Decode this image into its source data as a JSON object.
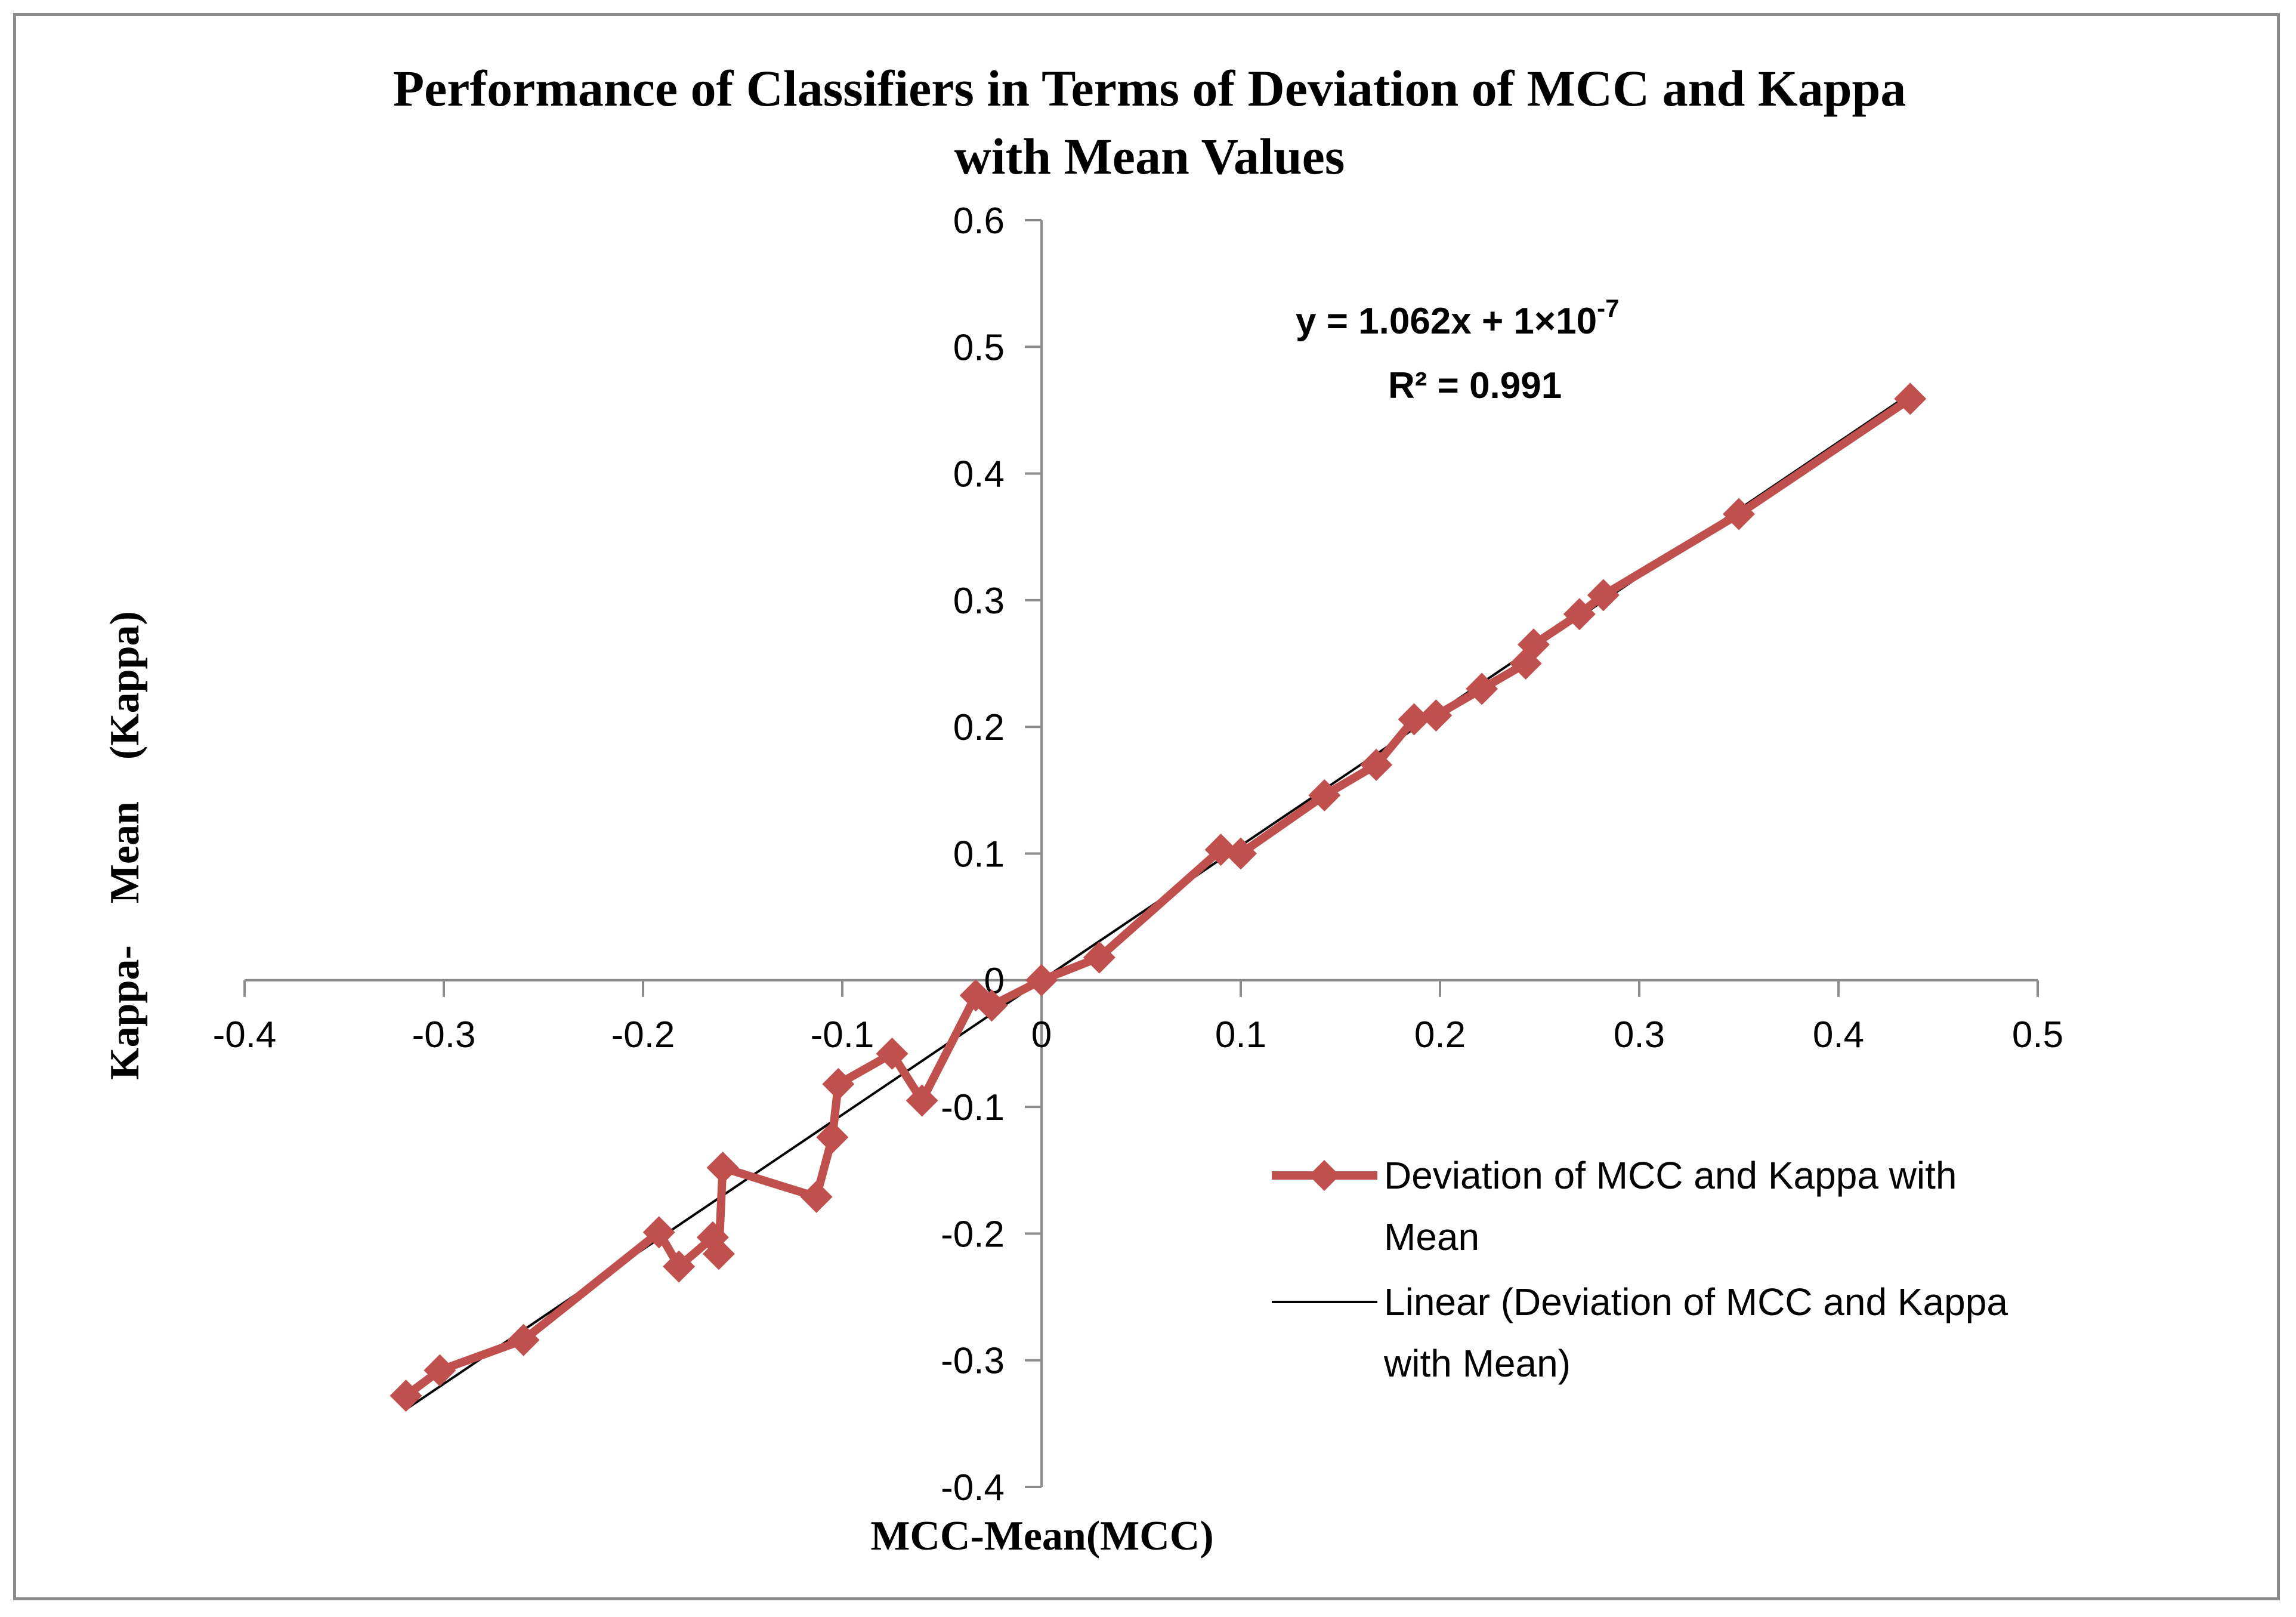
{
  "chart_data": {
    "type": "line",
    "title_lines": [
      "Performance of Classifiers in Terms of Deviation of MCC and Kappa",
      "with Mean Values"
    ],
    "xlabel": "MCC-Mean(MCC)",
    "ylabel": "Kappa-    Mean    (Kappa)",
    "xlim": [
      -0.4,
      0.5
    ],
    "ylim": [
      -0.4,
      0.6
    ],
    "x_ticks": [
      -0.4,
      -0.3,
      -0.2,
      -0.1,
      0,
      0.1,
      0.2,
      0.3,
      0.4,
      0.5
    ],
    "y_ticks": [
      -0.4,
      -0.3,
      -0.2,
      -0.1,
      0,
      0.1,
      0.2,
      0.3,
      0.4,
      0.5,
      0.6
    ],
    "x_tick_labels": [
      "-0.4",
      "-0.3",
      "-0.2",
      "-0.1",
      "0",
      "0.1",
      "0.2",
      "0.3",
      "0.4",
      "0.5"
    ],
    "y_tick_labels": [
      "-0.4",
      "-0.3",
      "-0.2",
      "-0.1",
      "0",
      "0.1",
      "0.2",
      "0.3",
      "0.4",
      "0.5",
      "0.6"
    ],
    "series": [
      {
        "name": "Deviation of MCC and Kappa with Mean",
        "color": "#c0504d",
        "marker": "diamond",
        "x": [
          -0.319,
          -0.302,
          -0.26,
          -0.192,
          -0.182,
          -0.165,
          -0.162,
          -0.16,
          -0.113,
          -0.105,
          -0.102,
          -0.075,
          -0.06,
          -0.033,
          -0.025,
          0.0,
          0.029,
          0.09,
          0.1,
          0.142,
          0.168,
          0.187,
          0.198,
          0.221,
          0.243,
          0.247,
          0.27,
          0.282,
          0.35,
          0.436
        ],
        "y": [
          -0.328,
          -0.308,
          -0.284,
          -0.199,
          -0.226,
          -0.203,
          -0.216,
          -0.148,
          -0.171,
          -0.124,
          -0.082,
          -0.058,
          -0.095,
          -0.012,
          -0.02,
          0.0,
          0.018,
          0.103,
          0.1,
          0.146,
          0.17,
          0.206,
          0.209,
          0.23,
          0.25,
          0.265,
          0.289,
          0.304,
          0.368,
          0.459
        ]
      }
    ],
    "trendline": {
      "name": "Linear (Deviation of MCC and Kappa with Mean)",
      "color": "#000000",
      "slope": 1.062,
      "intercept": 1e-07,
      "x_range": [
        -0.319,
        0.436
      ]
    },
    "annotation": {
      "equation_prefix": "y = 1.062x + 1×10",
      "equation_exponent": "-7",
      "r2_label": "R² = 0.991"
    },
    "legend": {
      "position": "right",
      "entries": [
        {
          "lines": [
            "Deviation of MCC and Kappa with",
            "Mean"
          ]
        },
        {
          "lines": [
            "Linear (Deviation of MCC and Kappa",
            "with Mean)"
          ]
        }
      ]
    }
  }
}
